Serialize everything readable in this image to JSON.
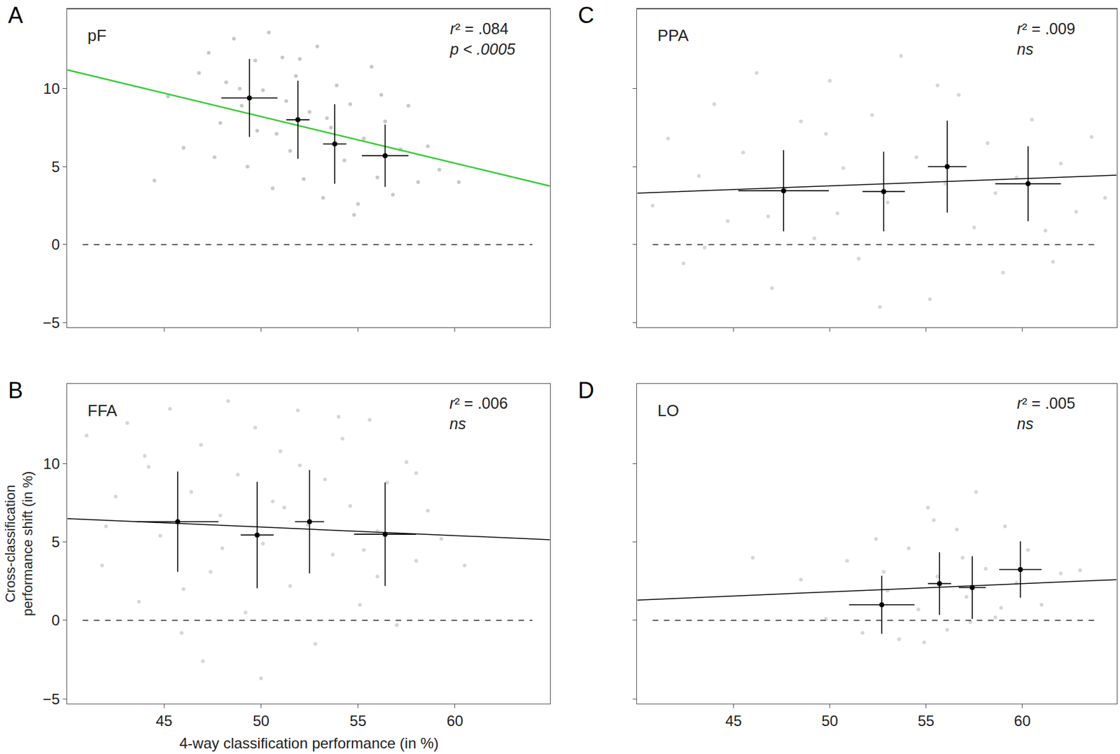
{
  "chart_data": [
    {
      "type": "scatter",
      "panel": "A",
      "title": "pF",
      "annotations": [
        "r² = .084",
        "p < .0005"
      ],
      "xlim": [
        40,
        64.9
      ],
      "xticks": [
        45,
        50,
        55,
        60
      ],
      "ylim": [
        -5.3,
        15.1
      ],
      "yticks": [
        -5,
        0,
        5,
        10
      ],
      "tick_labels": "y",
      "series": [
        {
          "type": "scatter",
          "marker": "circle",
          "color": "#9a9a9a",
          "x": [
            44.5,
            45.2,
            46.0,
            46.8,
            47.3,
            47.9,
            48.2,
            48.6,
            49.0,
            49.3,
            49.7,
            50.1,
            50.4,
            50.8,
            51.1,
            51.5,
            51.8,
            52.2,
            52.5,
            52.9,
            53.2,
            53.6,
            53.9,
            54.3,
            54.6,
            55.0,
            55.3,
            55.7,
            56.0,
            56.4,
            56.8,
            57.2,
            57.6,
            58.1,
            58.6,
            59.2,
            60.2,
            48.9,
            50.6,
            52.0,
            53.4,
            54.8,
            56.2,
            51.3,
            49.8,
            47.6
          ],
          "values": [
            4.1,
            9.5,
            6.2,
            11.0,
            12.3,
            7.8,
            10.4,
            13.2,
            8.9,
            5.0,
            11.8,
            9.9,
            13.6,
            7.1,
            12.0,
            6.0,
            10.8,
            4.2,
            8.5,
            12.7,
            3.0,
            7.5,
            10.2,
            5.4,
            9.0,
            2.6,
            6.8,
            11.4,
            4.3,
            7.9,
            3.2,
            6.1,
            8.9,
            4.0,
            6.3,
            4.8,
            4.0,
            10.0,
            3.6,
            11.9,
            8.1,
            1.9,
            9.6,
            9.2,
            7.3,
            5.6
          ]
        },
        {
          "type": "line",
          "line_style": "dashed",
          "color": "#000000",
          "x": [
            40.8,
            64.0
          ],
          "values": [
            0,
            0
          ]
        },
        {
          "type": "line",
          "line_style": "solid",
          "color": "#33cc33",
          "x": [
            40,
            64.9
          ],
          "values": [
            11.2,
            3.75
          ]
        },
        {
          "type": "scatter",
          "marker": "circle",
          "color": "#000000",
          "x": [
            49.4,
            51.9,
            53.8,
            56.4
          ],
          "values": [
            9.4,
            8.0,
            6.45,
            5.7
          ],
          "xerr": [
            1.45,
            0.6,
            0.6,
            1.2
          ],
          "yerr": [
            2.5,
            2.5,
            2.55,
            2.0
          ]
        }
      ]
    },
    {
      "type": "scatter",
      "panel": "B",
      "title": "FFA",
      "annotations": [
        "r² = .006",
        "ns"
      ],
      "x_label": "4-way classification performance (in %)",
      "y_label": "Cross-classification\nperformance shift (in %)",
      "xlim": [
        40,
        64.9
      ],
      "xticks": [
        45,
        50,
        55,
        60
      ],
      "ylim": [
        -5.3,
        15.1
      ],
      "yticks": [
        -5,
        0,
        5,
        10
      ],
      "tick_labels": true,
      "series": [
        {
          "type": "scatter",
          "marker": "circle",
          "color": "#b5b5b5",
          "x": [
            41.0,
            41.8,
            42.5,
            43.1,
            43.7,
            44.2,
            44.8,
            45.3,
            45.9,
            46.4,
            46.9,
            47.4,
            47.9,
            48.3,
            48.8,
            49.2,
            49.7,
            50.1,
            50.6,
            51.0,
            51.5,
            51.9,
            52.4,
            52.8,
            53.3,
            53.7,
            54.2,
            54.6,
            55.1,
            55.6,
            56.0,
            56.5,
            57.0,
            57.5,
            58.0,
            58.6,
            59.3,
            60.5,
            42.0,
            44.0,
            46.0,
            48.0,
            50.0,
            52.0,
            54.0,
            56.0,
            58.0,
            47.0,
            51.2,
            55.3
          ],
          "values": [
            11.8,
            3.5,
            7.9,
            12.6,
            1.2,
            9.8,
            5.4,
            13.5,
            -0.8,
            8.2,
            11.2,
            3.1,
            6.7,
            14.0,
            9.3,
            0.5,
            12.3,
            4.9,
            7.6,
            10.8,
            2.2,
            13.4,
            6.1,
            -1.5,
            9.0,
            4.2,
            11.6,
            7.3,
            1.0,
            12.8,
            5.7,
            8.8,
            -0.3,
            10.1,
            3.8,
            7.0,
            5.2,
            3.5,
            6.0,
            10.5,
            2.0,
            4.6,
            -3.7,
            9.9,
            13.0,
            2.8,
            9.4,
            -2.6,
            7.2,
            4.5
          ]
        },
        {
          "type": "line",
          "line_style": "dashed",
          "color": "#000000",
          "x": [
            40.8,
            64.0
          ],
          "values": [
            0,
            0
          ]
        },
        {
          "type": "line",
          "line_style": "solid",
          "color": "#000000",
          "x": [
            40,
            64.9
          ],
          "values": [
            6.5,
            5.15
          ]
        },
        {
          "type": "scatter",
          "marker": "circle",
          "color": "#000000",
          "x": [
            45.7,
            49.8,
            52.5,
            56.4
          ],
          "values": [
            6.3,
            5.45,
            6.3,
            5.5
          ],
          "xerr": [
            2.1,
            0.85,
            0.75,
            1.6
          ],
          "yerr": [
            3.2,
            3.4,
            3.3,
            3.3
          ]
        }
      ]
    },
    {
      "type": "scatter",
      "panel": "C",
      "title": "PPA",
      "annotations": [
        "r² = .009",
        "ns"
      ],
      "xlim": [
        40,
        64.9
      ],
      "xticks": [
        45,
        50,
        55,
        60
      ],
      "ylim": [
        -5.3,
        15.1
      ],
      "yticks": [
        -5,
        0,
        5,
        10
      ],
      "tick_labels": false,
      "series": [
        {
          "type": "scatter",
          "marker": "circle",
          "color": "#b5b5b5",
          "x": [
            40.8,
            41.6,
            42.4,
            43.2,
            44.0,
            44.7,
            45.5,
            46.2,
            47.0,
            47.7,
            48.5,
            49.2,
            50.0,
            50.7,
            51.5,
            52.2,
            53.0,
            53.7,
            54.5,
            55.2,
            56.0,
            56.7,
            57.5,
            58.2,
            59.0,
            59.7,
            60.5,
            61.2,
            62.0,
            62.8,
            63.6,
            64.3,
            43.5,
            46.8,
            49.8,
            52.6,
            55.6,
            58.6,
            61.6,
            50.4
          ],
          "values": [
            2.5,
            6.8,
            -1.2,
            4.4,
            9.0,
            1.5,
            5.9,
            11.0,
            -2.8,
            3.6,
            7.9,
            0.4,
            10.5,
            4.9,
            -0.9,
            8.3,
            2.7,
            12.1,
            5.6,
            -3.5,
            3.9,
            9.6,
            1.1,
            6.5,
            -1.8,
            4.3,
            8.0,
            0.9,
            5.2,
            2.1,
            6.9,
            3.0,
            -0.2,
            1.8,
            7.1,
            -4.0,
            10.2,
            3.3,
            -1.1,
            2.0
          ]
        },
        {
          "type": "line",
          "line_style": "dashed",
          "color": "#000000",
          "x": [
            40.8,
            64.0
          ],
          "values": [
            0,
            0
          ]
        },
        {
          "type": "line",
          "line_style": "solid",
          "color": "#000000",
          "x": [
            40,
            64.9
          ],
          "values": [
            3.3,
            4.45
          ]
        },
        {
          "type": "scatter",
          "marker": "circle",
          "color": "#000000",
          "x": [
            47.6,
            52.8,
            56.1,
            60.3
          ],
          "values": [
            3.45,
            3.4,
            5.0,
            3.9
          ],
          "xerr": [
            2.35,
            1.1,
            1.0,
            1.7
          ],
          "yerr": [
            2.6,
            2.55,
            2.95,
            2.4
          ]
        }
      ]
    },
    {
      "type": "scatter",
      "panel": "D",
      "title": "LO",
      "annotations": [
        "r² = .005",
        "ns"
      ],
      "xlim": [
        40,
        64.9
      ],
      "xticks": [
        45,
        50,
        55,
        60
      ],
      "ylim": [
        -5.3,
        15.1
      ],
      "yticks": [
        -5,
        0,
        5,
        10
      ],
      "tick_labels": "x",
      "series": [
        {
          "type": "scatter",
          "marker": "circle",
          "color": "#b5b5b5",
          "x": [
            46.0,
            48.5,
            49.8,
            50.9,
            51.7,
            52.4,
            53.0,
            53.6,
            54.1,
            54.6,
            55.1,
            55.6,
            56.1,
            56.6,
            57.1,
            57.6,
            58.1,
            58.6,
            59.1,
            59.7,
            60.3,
            61.0,
            62.0,
            63.0,
            52.8,
            54.9,
            56.9,
            58.9,
            55.4,
            57.3
          ],
          "values": [
            4.0,
            2.6,
            0.1,
            3.8,
            -0.8,
            5.2,
            1.9,
            -1.2,
            4.6,
            0.7,
            7.2,
            2.8,
            -0.6,
            5.8,
            1.5,
            8.2,
            3.3,
            0.2,
            6.0,
            2.4,
            4.5,
            1.0,
            3.0,
            3.2,
            3.1,
            -1.4,
            4.0,
            0.8,
            6.4,
            -0.1
          ]
        },
        {
          "type": "line",
          "line_style": "dashed",
          "color": "#000000",
          "x": [
            40.8,
            64.0
          ],
          "values": [
            0,
            0
          ]
        },
        {
          "type": "line",
          "line_style": "solid",
          "color": "#000000",
          "x": [
            40,
            64.9
          ],
          "values": [
            1.3,
            2.6
          ]
        },
        {
          "type": "scatter",
          "marker": "circle",
          "color": "#000000",
          "x": [
            52.7,
            55.7,
            57.4,
            59.9
          ],
          "values": [
            1.0,
            2.35,
            2.1,
            3.25
          ],
          "xerr": [
            1.7,
            0.6,
            0.7,
            1.1
          ],
          "yerr": [
            1.85,
            2.0,
            2.0,
            1.8
          ]
        }
      ]
    }
  ]
}
